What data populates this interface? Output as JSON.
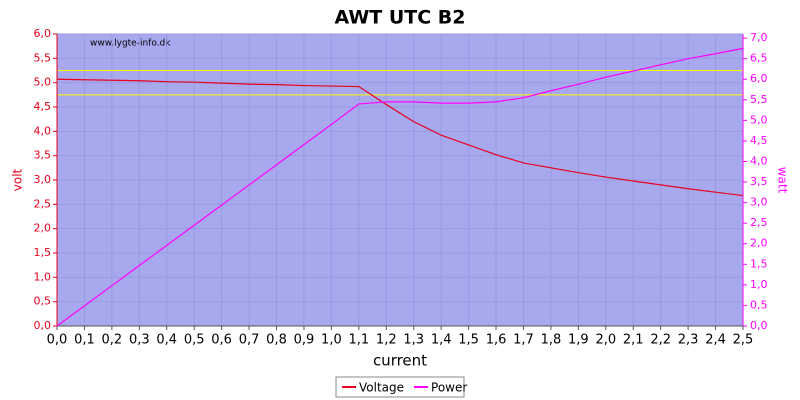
{
  "chart_data": {
    "type": "line",
    "title": "AWT UTC B2",
    "watermark": "www.lygte-info.dk",
    "xlabel": "current",
    "ylabel": "volt",
    "y2label": "watt",
    "x": [
      0,
      0.1,
      0.2,
      0.3,
      0.4,
      0.5,
      0.6,
      0.7,
      0.8,
      0.9,
      1.0,
      1.1,
      1.2,
      1.3,
      1.4,
      1.5,
      1.6,
      1.7,
      1.8,
      1.9,
      2.0,
      2.1,
      2.2,
      2.3,
      2.4,
      2.5
    ],
    "series": [
      {
        "name": "Voltage",
        "color": "#e8001c",
        "axis": "y",
        "values": [
          5.07,
          5.06,
          5.05,
          5.04,
          5.02,
          5.01,
          4.99,
          4.97,
          4.96,
          4.94,
          4.93,
          4.92,
          4.55,
          4.2,
          3.92,
          3.72,
          3.52,
          3.35,
          3.25,
          3.15,
          3.06,
          2.98,
          2.9,
          2.82,
          2.75,
          2.68
        ]
      },
      {
        "name": "Power",
        "color": "#ff00ff",
        "axis": "y2",
        "values": [
          0,
          0.49,
          0.98,
          1.47,
          1.96,
          2.45,
          2.94,
          3.43,
          3.92,
          4.41,
          4.9,
          5.4,
          5.45,
          5.45,
          5.42,
          5.42,
          5.45,
          5.55,
          5.72,
          5.88,
          6.05,
          6.2,
          6.35,
          6.5,
          6.62,
          6.75
        ]
      }
    ],
    "reference_lines": [
      5.25,
      4.75
    ],
    "reference_color": "#ffff00",
    "xlim": [
      0,
      2.5
    ],
    "ylim": [
      0,
      6
    ],
    "y2lim": [
      0,
      7.1
    ],
    "xticks": [
      {
        "value": 0,
        "label": "0,0"
      },
      {
        "value": 0.1,
        "label": "0,1"
      },
      {
        "value": 0.2,
        "label": "0,2"
      },
      {
        "value": 0.3,
        "label": "0,3"
      },
      {
        "value": 0.4,
        "label": "0,4"
      },
      {
        "value": 0.5,
        "label": "0,5"
      },
      {
        "value": 0.6,
        "label": "0,6"
      },
      {
        "value": 0.7,
        "label": "0,7"
      },
      {
        "value": 0.8,
        "label": "0,8"
      },
      {
        "value": 0.9,
        "label": "0,9"
      },
      {
        "value": 1.0,
        "label": "1,0"
      },
      {
        "value": 1.1,
        "label": "1,1"
      },
      {
        "value": 1.2,
        "label": "1,2"
      },
      {
        "value": 1.3,
        "label": "1,3"
      },
      {
        "value": 1.4,
        "label": "1,4"
      },
      {
        "value": 1.5,
        "label": "1,5"
      },
      {
        "value": 1.6,
        "label": "1,6"
      },
      {
        "value": 1.7,
        "label": "1,7"
      },
      {
        "value": 1.8,
        "label": "1,8"
      },
      {
        "value": 1.9,
        "label": "1,9"
      },
      {
        "value": 2.0,
        "label": "2,0"
      },
      {
        "value": 2.1,
        "label": "2,1"
      },
      {
        "value": 2.2,
        "label": "2,2"
      },
      {
        "value": 2.3,
        "label": "2,3"
      },
      {
        "value": 2.4,
        "label": "2,4"
      },
      {
        "value": 2.5,
        "label": "2,5"
      }
    ],
    "yticks": [
      {
        "value": 0,
        "label": "0,0"
      },
      {
        "value": 0.5,
        "label": "0,5"
      },
      {
        "value": 1.0,
        "label": "1,0"
      },
      {
        "value": 1.5,
        "label": "1,5"
      },
      {
        "value": 2.0,
        "label": "2,0"
      },
      {
        "value": 2.5,
        "label": "2,5"
      },
      {
        "value": 3.0,
        "label": "3,0"
      },
      {
        "value": 3.5,
        "label": "3,5"
      },
      {
        "value": 4.0,
        "label": "4,0"
      },
      {
        "value": 4.5,
        "label": "4,5"
      },
      {
        "value": 5.0,
        "label": "5,0"
      },
      {
        "value": 5.5,
        "label": "5,5"
      },
      {
        "value": 6.0,
        "label": "6,0"
      }
    ],
    "y2ticks": [
      {
        "value": 0,
        "label": "0,0"
      },
      {
        "value": 0.5,
        "label": "0,5"
      },
      {
        "value": 1.0,
        "label": "1,0"
      },
      {
        "value": 1.5,
        "label": "1,5"
      },
      {
        "value": 2.0,
        "label": "2,0"
      },
      {
        "value": 2.5,
        "label": "2,5"
      },
      {
        "value": 3.0,
        "label": "3,0"
      },
      {
        "value": 3.5,
        "label": "3,5"
      },
      {
        "value": 4.0,
        "label": "4,0"
      },
      {
        "value": 4.5,
        "label": "4,5"
      },
      {
        "value": 5.0,
        "label": "5,0"
      },
      {
        "value": 5.5,
        "label": "5,5"
      },
      {
        "value": 6.0,
        "label": "6,0"
      },
      {
        "value": 6.5,
        "label": "6,5"
      },
      {
        "value": 7.0,
        "label": "7,0"
      }
    ],
    "grid": true
  }
}
